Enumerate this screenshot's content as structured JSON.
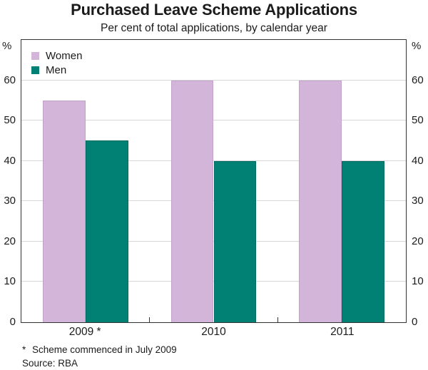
{
  "title": "Purchased Leave Scheme Applications",
  "subtitle": "Per cent of total applications, by calendar year",
  "axis": {
    "unit": "%",
    "yticks": [
      0,
      10,
      20,
      30,
      40,
      50,
      60
    ],
    "ymax": 70
  },
  "chart_data": {
    "type": "bar",
    "title": "Purchased Leave Scheme Applications",
    "subtitle": "Per cent of total applications, by calendar year",
    "categories": [
      "2009 *",
      "2010",
      "2011"
    ],
    "series": [
      {
        "name": "Women",
        "values": [
          55,
          60,
          60
        ],
        "color": "#d2b5d8",
        "edge": "#c3a3cb"
      },
      {
        "name": "Men",
        "values": [
          45,
          40,
          40
        ],
        "color": "#008173",
        "edge": "#006b60"
      }
    ],
    "ylabel": "%",
    "ylabel_right": "%",
    "ylim": [
      0,
      70
    ],
    "yticks": [
      0,
      10,
      20,
      30,
      40,
      50,
      60
    ],
    "grid": true,
    "legend_position": "top-left"
  },
  "footnote": {
    "marker": "*",
    "text": "Scheme commenced in July 2009"
  },
  "source": "Source: RBA",
  "colors": {
    "women": "#d2b5d8",
    "men": "#008173",
    "grid": "#d6d6d6",
    "frame": "#333333",
    "text": "#1b1b1b"
  }
}
